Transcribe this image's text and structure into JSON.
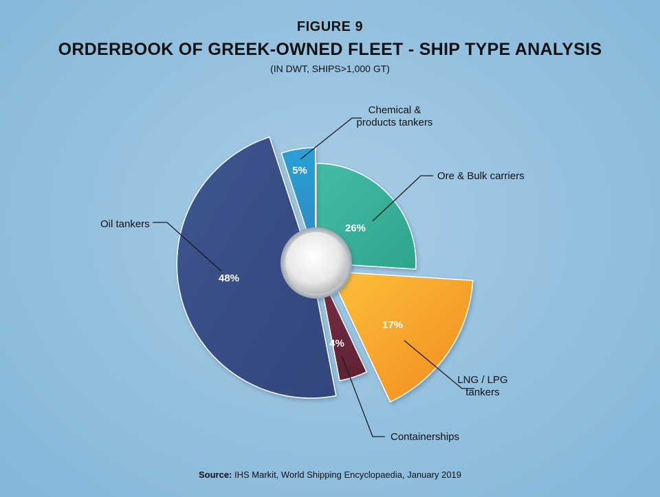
{
  "figure_label": "FIGURE 9",
  "source": {
    "label": "Source:",
    "text": "IHS Markit, World Shipping Encyclopaedia, January 2019"
  },
  "chart_data": {
    "type": "pie",
    "title": "ORDERBOOK OF GREEK-OWNED FLEET - SHIP TYPE ANALYSIS",
    "subtitle": "(IN DWT, SHIPS>1,000 GT)",
    "slices": [
      {
        "category": "Ore & Bulk carriers",
        "value": 26,
        "label": "26%",
        "color": "#3fb49c",
        "label_lines": [
          "Ore & Bulk carriers"
        ]
      },
      {
        "category": "LNG / LPG tankers",
        "value": 17,
        "label": "17%",
        "color": "#f7a12a",
        "label_lines": [
          "LNG / LPG",
          "tankers"
        ]
      },
      {
        "category": "Containerships",
        "value": 4,
        "label": "4%",
        "color": "#6e2a3e",
        "label_lines": [
          "Containerships"
        ]
      },
      {
        "category": "Oil tankers",
        "value": 48,
        "label": "48%",
        "color": "#3a5088",
        "label_lines": [
          "Oil tankers"
        ]
      },
      {
        "category": "Chemical & products tankers",
        "value": 5,
        "label": "5%",
        "color": "#2f97c9",
        "label_lines": [
          "Chemical &",
          "products tankers"
        ]
      }
    ]
  }
}
